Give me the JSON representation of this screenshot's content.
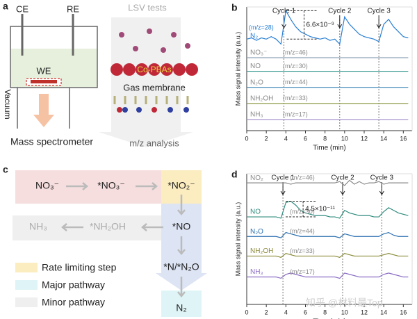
{
  "panels": {
    "a": {
      "letter": "a",
      "ce": "CE",
      "re": "RE",
      "we": "WE",
      "vacuum": "Vacuum",
      "ms": "Mass spectrometer",
      "lsv": "LSV tests",
      "catalyst": "Co-PBAs",
      "membrane": "Gas membrane",
      "analysis": "m/z analysis"
    },
    "c": {
      "letter": "c",
      "species": [
        "NO₃⁻",
        "*NO₃⁻",
        "*NO₂⁻",
        "*NO",
        "*N/*N₂O",
        "N₂",
        "NH₃",
        "*NH₂OH"
      ],
      "legend": [
        "Rate limiting step",
        "Major pathway",
        "Minor pathway"
      ]
    }
  },
  "watermark": "知乎 @材料最Top",
  "chart_data": [
    {
      "type": "line",
      "panel": "b",
      "ylabel": "Mass signal intensity (a.u.)",
      "xlabel": "Time (min)",
      "xlim": [
        0,
        16.9
      ],
      "xticks": [
        0,
        2,
        4,
        6,
        8,
        10,
        12,
        14,
        16
      ],
      "ylim": [
        0,
        100
      ],
      "x": [
        0,
        0.5,
        1,
        1.5,
        2,
        2.5,
        3,
        3.5,
        4,
        4.5,
        5,
        5.5,
        6,
        6.5,
        7,
        7.5,
        8,
        8.5,
        9,
        9.5,
        10,
        10.5,
        11,
        11.5,
        12,
        12.5,
        13,
        13.5,
        14,
        14.5,
        15,
        15.5,
        16,
        16.5
      ],
      "series": [
        {
          "name": "N₂",
          "label": "(m/z=28)",
          "color": "#2a7fd4",
          "values": [
            74,
            75,
            73,
            75,
            74,
            76,
            74,
            70,
            97,
            90,
            84,
            80,
            78,
            76,
            75,
            74,
            75,
            73,
            74,
            70,
            92,
            86,
            82,
            78,
            76,
            75,
            74,
            72,
            86,
            90,
            84,
            80,
            76,
            75
          ]
        },
        {
          "name": "NO₃⁻",
          "label": "(m/z=46)",
          "color": "#8fa3b8",
          "values": [
            59,
            59,
            59,
            59,
            59,
            59,
            59,
            59,
            59,
            59,
            59,
            59,
            59,
            59,
            59,
            59,
            59,
            59,
            59,
            59,
            59,
            59,
            59,
            59,
            59,
            59,
            59,
            59,
            59,
            59,
            59,
            59,
            59,
            59
          ]
        },
        {
          "name": "NO",
          "label": "(m/z=30)",
          "color": "#3a9a90",
          "values": [
            48,
            48,
            48,
            48,
            48,
            48,
            48,
            48,
            48,
            48,
            48,
            48,
            48,
            48,
            48,
            48,
            48,
            48,
            48,
            48,
            48,
            48,
            48,
            48,
            48,
            48,
            48,
            48,
            48,
            48,
            48,
            48,
            48,
            48
          ]
        },
        {
          "name": "N₂O",
          "label": "(m/z=44)",
          "color": "#3a86b4",
          "values": [
            35,
            35,
            35,
            35,
            35,
            35,
            35,
            35,
            35,
            35,
            35,
            35,
            35,
            35,
            35,
            35,
            35,
            35,
            35,
            35,
            35,
            35,
            35,
            35,
            35,
            35,
            35,
            35,
            35,
            35,
            35,
            35,
            35,
            35
          ]
        },
        {
          "name": "NH₂OH",
          "label": "(m/z=33)",
          "color": "#8f9a4a",
          "values": [
            22,
            22,
            22,
            22,
            22,
            22,
            22,
            22,
            22,
            22,
            22,
            22,
            22,
            22,
            22,
            22,
            22,
            22,
            22,
            22,
            22,
            22,
            22,
            22,
            22,
            22,
            22,
            22,
            22,
            22,
            22,
            22,
            22,
            22
          ]
        },
        {
          "name": "NH₃",
          "label": "(m/z=17)",
          "color": "#a994cf",
          "values": [
            9,
            9,
            9,
            9,
            9,
            9,
            9,
            9,
            9,
            9,
            9,
            9,
            9,
            9,
            9,
            9,
            9,
            9,
            9,
            9,
            9,
            9,
            9,
            9,
            9,
            9,
            9,
            9,
            9,
            9,
            9,
            9,
            9,
            9
          ]
        }
      ],
      "markers": [
        {
          "label": "Cycle 1",
          "x": 3.8
        },
        {
          "label": "Cycle 2",
          "x": 9.5
        },
        {
          "label": "Cycle 3",
          "x": 13.5
        }
      ],
      "annotation": "6.6×10⁻⁹"
    },
    {
      "type": "line",
      "panel": "d",
      "ylabel": "Mass signal intensity (a.u.)",
      "xlabel": "Time (min)",
      "xlim": [
        0,
        16.9
      ],
      "xticks": [
        0,
        2,
        4,
        6,
        8,
        10,
        12,
        14,
        16
      ],
      "ylim": [
        0,
        100
      ],
      "x": [
        0,
        0.5,
        1,
        1.5,
        2,
        2.5,
        3,
        3.5,
        4,
        4.5,
        5,
        5.5,
        6,
        6.5,
        7,
        7.5,
        8,
        8.5,
        9,
        9.5,
        10,
        10.5,
        11,
        11.5,
        12,
        12.5,
        13,
        13.5,
        14,
        14.5,
        15,
        15.5,
        16,
        16.5
      ],
      "series": [
        {
          "name": "NO₂",
          "label": "(m/z=46)",
          "color": "#8a8a8a",
          "values": [
            93,
            93,
            93,
            93,
            93,
            93,
            93,
            93,
            93,
            92,
            93,
            93,
            93,
            93,
            93,
            93,
            93,
            93,
            93,
            94,
            91,
            95,
            92,
            94,
            92,
            93,
            93,
            94,
            92,
            93,
            93,
            93,
            93,
            93
          ]
        },
        {
          "name": "NO",
          "label": "(m/z=30)",
          "color": "#2e8b7e",
          "values": [
            67,
            67,
            67,
            67,
            67,
            67,
            67,
            66,
            78,
            79,
            76,
            72,
            70,
            69,
            68,
            68,
            68,
            67,
            67,
            66,
            72,
            70,
            69,
            68,
            68,
            68,
            67,
            67,
            71,
            74,
            72,
            70,
            69,
            68
          ]
        },
        {
          "name": "N₂O",
          "label": "(m/z=44)",
          "color": "#2b6fb0",
          "values": [
            52,
            52,
            52,
            52,
            52,
            52,
            52,
            51,
            55,
            54,
            53,
            52,
            52,
            52,
            52,
            52,
            52,
            52,
            52,
            51,
            54,
            53,
            52,
            52,
            52,
            52,
            52,
            52,
            54,
            55,
            53,
            52,
            52,
            52
          ]
        },
        {
          "name": "NH₂OH",
          "label": "(m/z=33)",
          "color": "#8a8a3a",
          "values": [
            37,
            37,
            37,
            37,
            37,
            37,
            37,
            36,
            39,
            38,
            37,
            37,
            37,
            37,
            37,
            37,
            37,
            37,
            37,
            36,
            39,
            38,
            37,
            37,
            37,
            37,
            37,
            37,
            38,
            39,
            38,
            37,
            37,
            37
          ]
        },
        {
          "name": "NH₃",
          "label": "(m/z=17)",
          "color": "#8a6cc4",
          "values": [
            21,
            21,
            21,
            21,
            21,
            21,
            21,
            20,
            23,
            24,
            23,
            22,
            21,
            21,
            21,
            21,
            21,
            21,
            21,
            20,
            24,
            23,
            22,
            21,
            21,
            21,
            21,
            21,
            23,
            24,
            23,
            22,
            21,
            21
          ]
        }
      ],
      "markers": [
        {
          "label": "Cycle 1",
          "x": 3.7
        },
        {
          "label": "Cycle 2",
          "x": 9.8
        },
        {
          "label": "Cycle 3",
          "x": 13.8
        }
      ],
      "annotation": "4.5×10⁻¹¹"
    }
  ]
}
